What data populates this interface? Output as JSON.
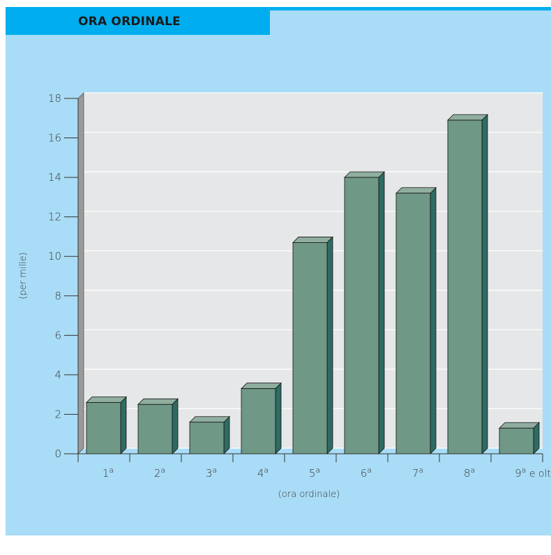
{
  "header": {
    "title": "ORA ORDINALE"
  },
  "colors": {
    "panel": "#a9dcf6",
    "title_band": "#00aeef",
    "plot_bg": "#e6e7e8",
    "bar_front": "#6f9886",
    "bar_side": "#2f6b63",
    "bar_top": "#8fae9f"
  },
  "chart_data": {
    "type": "bar",
    "categories": [
      "1",
      "2",
      "3",
      "4",
      "5",
      "6",
      "7",
      "8",
      "9"
    ],
    "category_suffix": "a",
    "last_category_extra": "e oltre",
    "values": [
      2.6,
      2.5,
      1.6,
      3.3,
      10.7,
      14.0,
      13.2,
      16.9,
      1.3
    ],
    "title": "ORA ORDINALE",
    "xlabel": "(ora ordinale)",
    "ylabel": "(per mille)",
    "ylim": [
      0,
      18
    ],
    "yticks": [
      0,
      2,
      4,
      6,
      8,
      10,
      12,
      14,
      16,
      18
    ],
    "grid": true,
    "legend": "none"
  }
}
